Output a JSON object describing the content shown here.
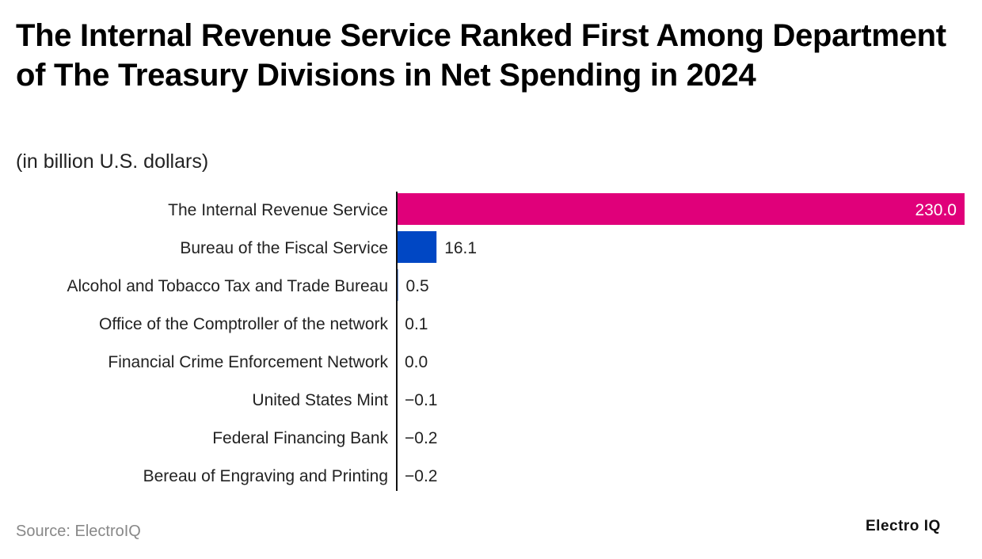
{
  "header": {
    "title": "The Internal Revenue Service Ranked First Among Department of The Treasury Divisions in Net Spending in 2024",
    "subtitle": "(in billion U.S. dollars)"
  },
  "footer": {
    "source": "Source: ElectroIQ",
    "brand": "Electro IQ"
  },
  "chart_data": {
    "type": "bar",
    "orientation": "horizontal",
    "title": "The Internal Revenue Service Ranked First Among Department of The Treasury Divisions in Net Spending in 2024",
    "subtitle": "(in billion U.S. dollars)",
    "xlabel": "",
    "ylabel": "",
    "grid": false,
    "xlim": [
      -0.2,
      230
    ],
    "categories": [
      "The Internal Revenue Service",
      "Bureau of the Fiscal Service",
      "Alcohol and Tobacco Tax and Trade Bureau",
      "Office of the Comptroller of the network",
      "Financial Crime Enforcement Network",
      "United States Mint",
      "Federal Financing Bank",
      "Bereau of Engraving and Printing"
    ],
    "values": [
      230.0,
      16.1,
      0.5,
      0.1,
      0.0,
      -0.1,
      -0.2,
      -0.2
    ],
    "value_labels": [
      "230.0",
      "16.1",
      "0.5",
      "0.1",
      "0.0",
      "−0.1",
      "−0.2",
      "−0.2"
    ],
    "colors": {
      "The Internal Revenue Service": "#e0007a",
      "Bureau of the Fiscal Service": "#0047c4",
      "default": "#0047c4"
    },
    "label_color_inside": "#ffffff",
    "label_color_outside": "#222222",
    "axis_color": "#111111"
  }
}
